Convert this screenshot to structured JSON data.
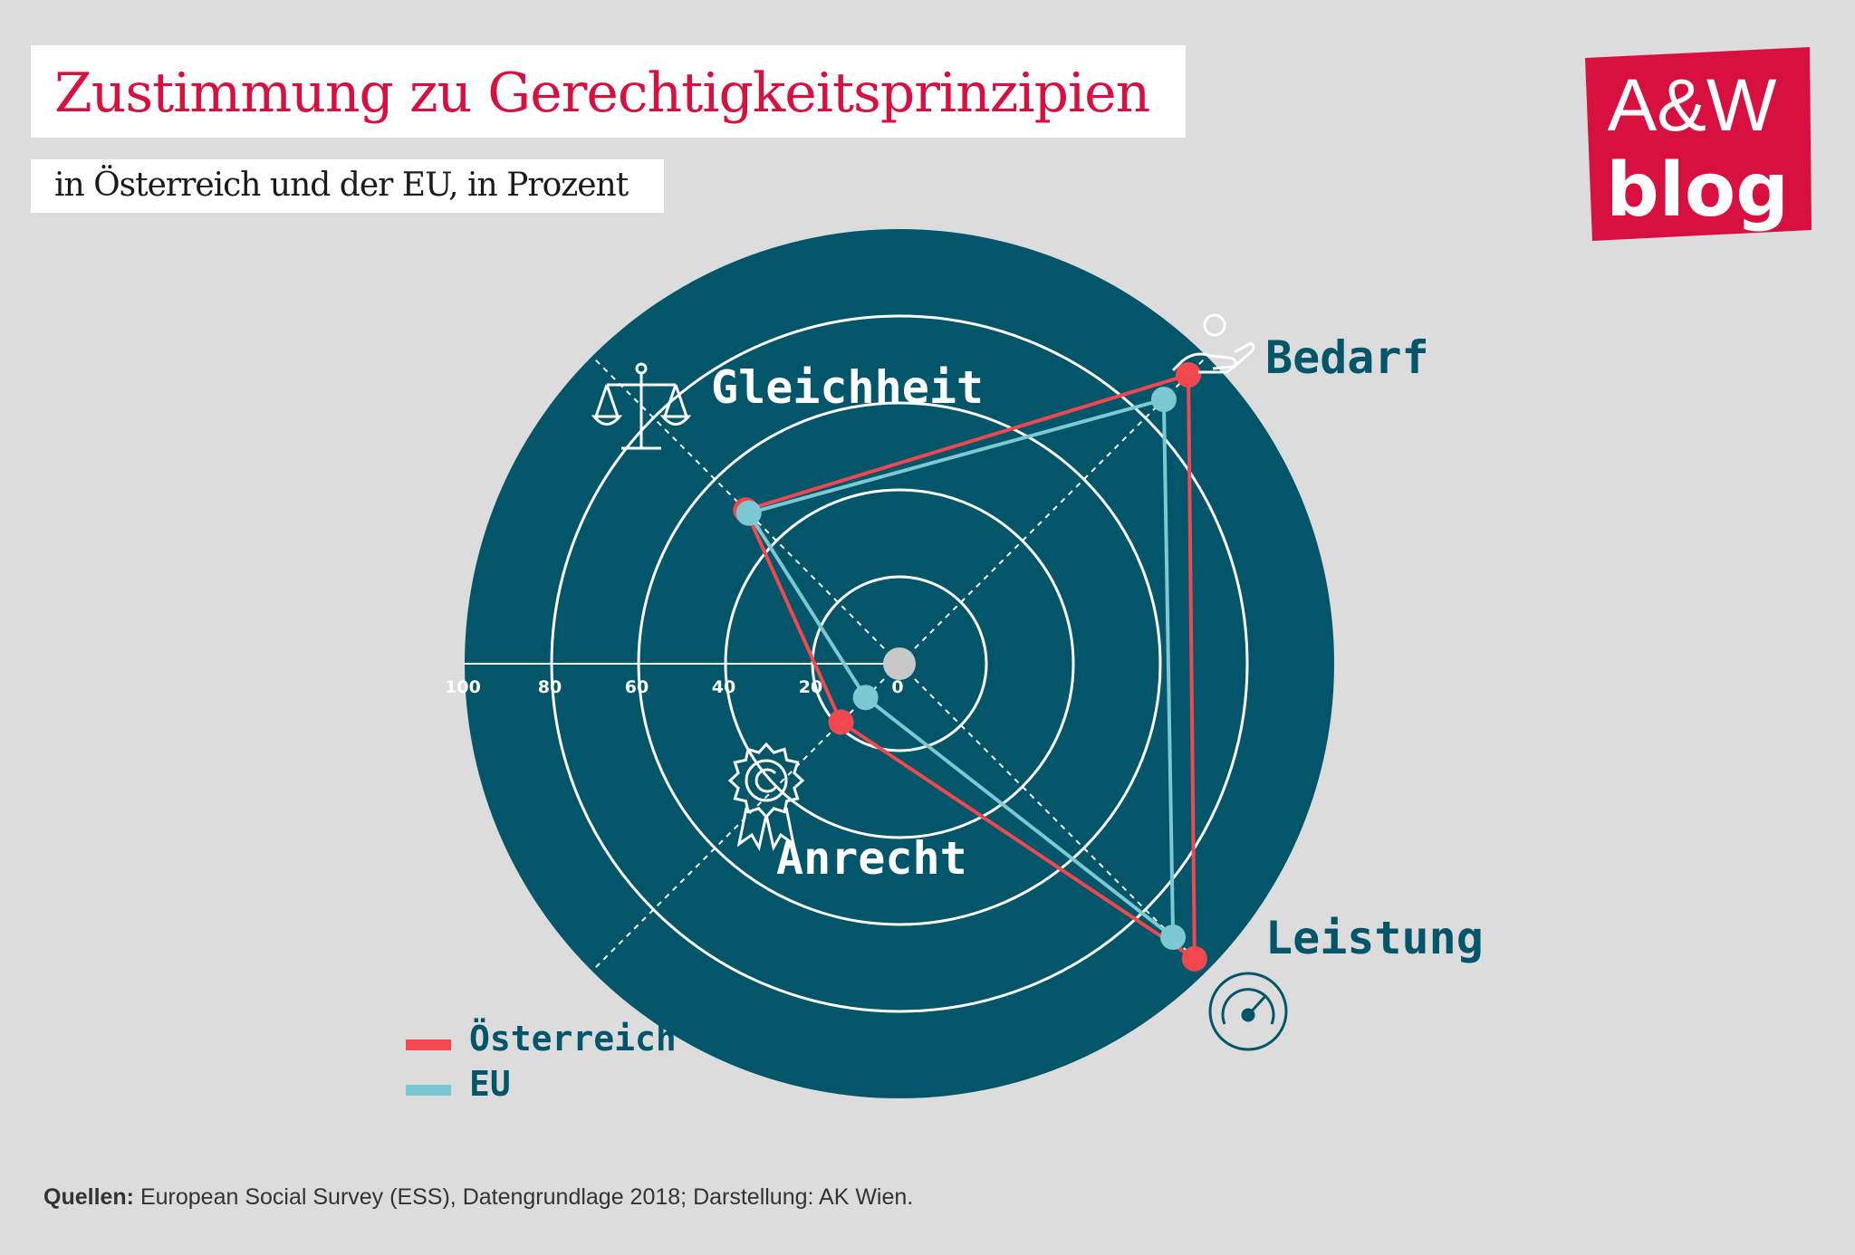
{
  "header": {
    "title": "Zustimmung zu Gerechtigkeitsprinzipien",
    "subtitle": "in Österreich und der EU, in Prozent"
  },
  "logo": {
    "line1": "A&W",
    "line2": "blog",
    "color": "#d8103f"
  },
  "footer": {
    "source_label": "Quellen:",
    "source_text": "European Social Survey (ESS), Datengrundlage 2018; Darstellung: AK Wien."
  },
  "colors": {
    "background": "#dcdcdc",
    "disc": "#03566a",
    "austria": "#f0484e",
    "eu": "#7cc8d3",
    "label": "#ffffff",
    "label_outside": "#03566a"
  },
  "chart_data": {
    "type": "radar",
    "axes": [
      {
        "name": "Gleichheit",
        "icon": "scales-icon"
      },
      {
        "name": "Bedarf",
        "icon": "helping-hand-icon"
      },
      {
        "name": "Leistung",
        "icon": "speedometer-icon"
      },
      {
        "name": "Anrecht",
        "icon": "rosette-award-icon"
      }
    ],
    "scale_ticks": [
      "100",
      "80",
      "60",
      "40",
      "20",
      "0"
    ],
    "range": [
      0,
      100
    ],
    "series": [
      {
        "name": "Österreich",
        "color": "#f0484e",
        "values": [
          50,
          94,
          96,
          19
        ]
      },
      {
        "name": "EU",
        "color": "#7cc8d3",
        "values": [
          49,
          86,
          89,
          11
        ]
      }
    ],
    "legend": {
      "position": "bottom-left"
    }
  }
}
